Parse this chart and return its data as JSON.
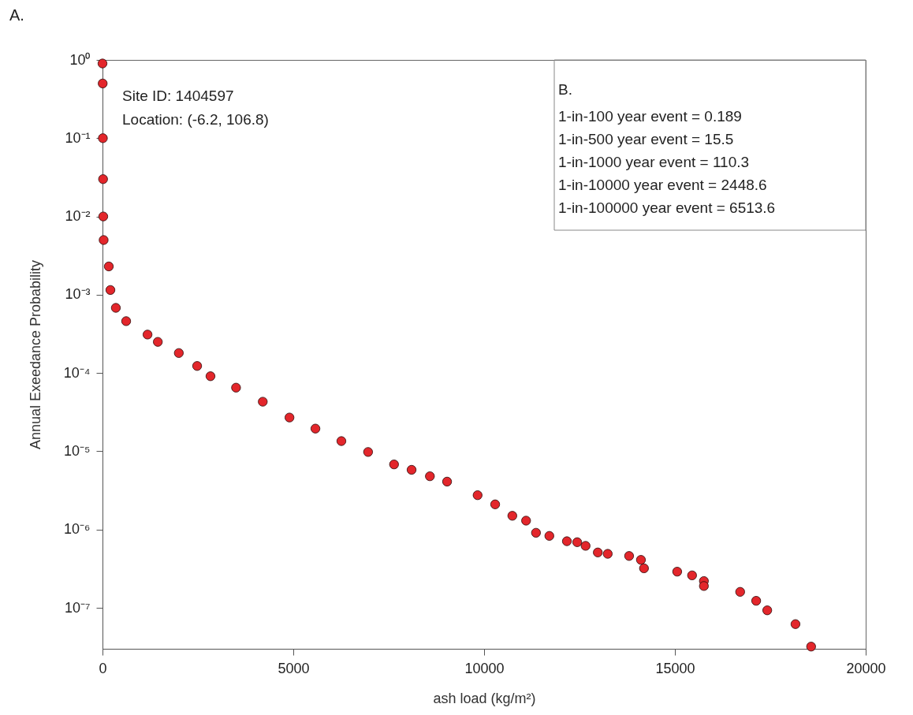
{
  "chart_data": {
    "type": "scatter",
    "xlabel": "ash load (kg/m²)",
    "ylabel": "Annual Exeedance Probability",
    "annotations": [
      "A.",
      "Site ID: 1404597",
      "Location: (-6.2, 106.8)",
      "B.",
      "1-in-100 year event = 0.189",
      "1-in-500 year event = 15.5",
      "1-in-1000 year event = 110.3",
      "1-in-10000 year event = 2448.6",
      "1-in-100000 year event = 6513.6"
    ],
    "log": "y",
    "grid": false,
    "legend": false,
    "marker": "circle",
    "xlim": [
      0,
      20000
    ],
    "xticks": [
      0,
      5000,
      10000,
      15000,
      20000
    ],
    "ylim": [
      3e-08,
      1
    ],
    "yticks": [
      {
        "value": 1,
        "label": "10⁰"
      },
      {
        "value": 0.1,
        "label": "10⁻¹"
      },
      {
        "value": 0.01,
        "label": "10⁻²"
      },
      {
        "value": 0.001,
        "label": "10⁻³"
      },
      {
        "value": 0.0001,
        "label": "10⁻⁴"
      },
      {
        "value": 1e-05,
        "label": "10⁻⁵"
      },
      {
        "value": 1e-06,
        "label": "10⁻⁶"
      },
      {
        "value": 1e-07,
        "label": "10⁻⁷"
      }
    ],
    "series": [
      {
        "color": "#e3262b",
        "x": [
          0,
          5,
          10,
          15,
          20,
          30,
          165,
          207,
          350,
          620,
          1180,
          1450,
          2000,
          2480,
          2830,
          3500,
          4200,
          4900,
          5580,
          6260,
          6960,
          7640,
          8100,
          8580,
          9030,
          9830,
          10290,
          10740,
          11100,
          11360,
          11710,
          12170,
          12440,
          12660,
          12980,
          13240,
          13800,
          14110,
          14190,
          15060,
          15450,
          15760,
          15760,
          16710,
          17130,
          17420,
          18160,
          18570
        ],
        "values": [
          0.9,
          0.5,
          0.1,
          0.03,
          0.01,
          0.005,
          0.0023,
          0.00115,
          0.00068,
          0.00046,
          0.00031,
          0.00025,
          0.00018,
          0.000123,
          9.1e-05,
          6.5e-05,
          4.3e-05,
          2.7e-05,
          1.95e-05,
          1.35e-05,
          9.8e-06,
          6.8e-06,
          5.8e-06,
          4.8e-06,
          4.1e-06,
          2.75e-06,
          2.1e-06,
          1.5e-06,
          1.3e-06,
          9.1e-07,
          8.3e-07,
          7.1e-07,
          6.9e-07,
          6.2e-07,
          5.1e-07,
          4.9e-07,
          4.6e-07,
          4.1e-07,
          3.2e-07,
          2.9e-07,
          2.6e-07,
          2.2e-07,
          1.9e-07,
          1.6e-07,
          1.23e-07,
          9.3e-08,
          6.2e-08,
          3.2e-08
        ]
      }
    ]
  }
}
